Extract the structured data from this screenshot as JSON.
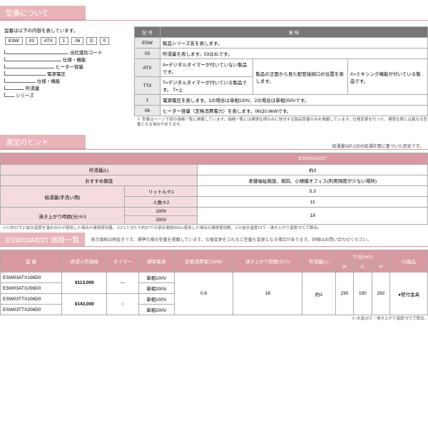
{
  "sections": {
    "about": "型番について",
    "about_lead": "型番は以下の内容を表しています。",
    "hint": "選定のヒント",
    "hint_note": "給湯量はP.135の給湯計算に基づいた目安です。",
    "pricelist_title": "ESW03A/03T 価格一覧",
    "pricelist_desc": "表示価格は税抜きです。標準仕様の型番を掲載しています。仕様変更をされると型番も変更となる場合があります。詳細はお問い合わせください。"
  },
  "model_parts": [
    "ESW",
    "03",
    "ATX",
    "1",
    "06",
    "D",
    "0"
  ],
  "model_labels": [
    "当社識別コード",
    "仕様・機能",
    "ヒーター容量",
    "電源電圧",
    "仕様・機能",
    "貯湯量",
    "シリーズ"
  ],
  "table1": {
    "head": [
      "記 号",
      "意 味"
    ],
    "rows": [
      [
        "ESW",
        "製品シリーズ名を表します。",
        "",
        ""
      ],
      [
        "03",
        "貯湯量を表します。03は3Lです。",
        "",
        ""
      ],
      [
        "ATX",
        "A=デジタルタイマーが付いていない製品です。",
        "製品の正面から見た配管接続口の位置を表します。",
        "X=ミキシング機能が付いている製品です。"
      ],
      [
        "TTX",
        "T=デジタルタイマーが付いている製品です。",
        "T=上",
        ""
      ],
      [
        "1",
        "電源電圧を表します。1の場合は単相100V、2の場合は単相200Vです。",
        "",
        ""
      ],
      [
        "06",
        "ヒーター容量（定格消費電力）を表します。06は0.6kWです。",
        "",
        ""
      ]
    ]
  },
  "note1": "※ 型番はページ下部の価格一覧に掲載しています。価格一覧には標準仕様のみに該当する製品型番のみを掲載しています。仕様変更を行った、標準仕様とは異なる型番となる場合があります。",
  "table2": {
    "head": [
      "",
      "ESW03A/03T"
    ],
    "rows": [
      {
        "label": "貯湯量(L)",
        "val": "約3",
        "span": 2
      },
      {
        "label": "おすすめ施設",
        "val": "老健福祉施設、病院、小規模オフィス(利用頻度が少ない場所)",
        "span": 2
      },
      {
        "group": "給湯量(手洗い用)",
        "sub": "リットル※1",
        "val": "5.3"
      },
      {
        "group": "",
        "sub": "人数※2",
        "val": "11"
      },
      {
        "group": "沸き上がり時間(分)※3",
        "sub": "100V",
        "val": "18"
      },
      {
        "group": "",
        "sub": "200V",
        "val": ""
      }
    ]
  },
  "note2": "※1:約37℃に給水温度を温め合わせ使用した場合の連続使用量。※2:1人当たり約37℃の混合連続500cc使用した場合の連続使用数。※3:給水温度15℃・沸き上がり温度75℃で算出。",
  "table3": {
    "head": [
      "型 番",
      "希望小売価格",
      "タイマー",
      "標準電源",
      "定格消費電力(kW)",
      "沸き上がり時間(分)※",
      "貯湯量(L)",
      "W",
      "D",
      "H",
      "付属品"
    ],
    "dim_head": "寸法(mm)",
    "rows": [
      {
        "model": "ESW03ATX106D0",
        "price": "¥113,000",
        "timer": "―",
        "volt": "単相100V",
        "kw": "0.6",
        "boil": "18",
        "tank": "約3",
        "w": "230",
        "d": "150",
        "h": "292",
        "acc": "●壁付金具"
      },
      {
        "model": "ESW03ATX206D0",
        "price": "",
        "timer": "",
        "volt": "単相200V",
        "kw": "",
        "boil": "",
        "tank": "",
        "w": "",
        "d": "",
        "h": "",
        "acc": ""
      },
      {
        "model": "ESW03TTX106D0",
        "price": "¥143,000",
        "timer": "○",
        "volt": "単相100V",
        "kw": "",
        "boil": "",
        "tank": "",
        "w": "",
        "d": "",
        "h": "",
        "acc": ""
      },
      {
        "model": "ESW03TTX206D0",
        "price": "",
        "timer": "",
        "volt": "単相200V",
        "kw": "",
        "boil": "",
        "tank": "",
        "w": "",
        "d": "",
        "h": "",
        "acc": ""
      }
    ]
  },
  "note3": "※:水温15℃・沸き上がり温度75℃で算出。"
}
